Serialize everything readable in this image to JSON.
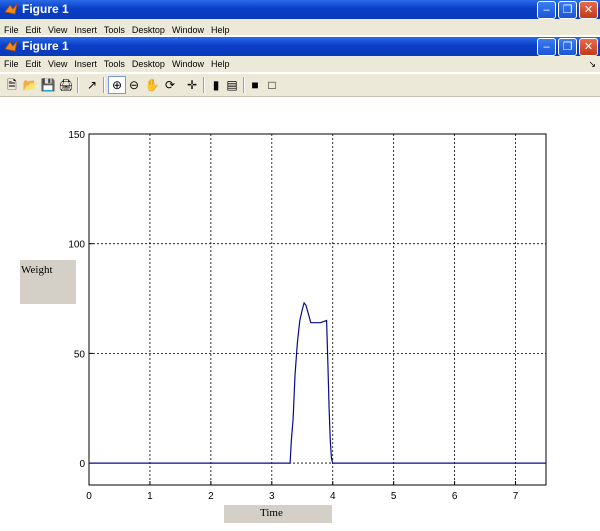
{
  "back_window": {
    "title": "Figure 1",
    "menu": [
      "File",
      "Edit",
      "View",
      "Insert",
      "Tools",
      "Desktop",
      "Window",
      "Help"
    ]
  },
  "window": {
    "title": "Figure 1",
    "menu": [
      "File",
      "Edit",
      "View",
      "Insert",
      "Tools",
      "Desktop",
      "Window",
      "Help"
    ],
    "toolbar": [
      "new-figure",
      "open-file",
      "save",
      "print",
      "edit-plot",
      "zoom-in",
      "zoom-out",
      "pan",
      "rotate-3d",
      "data-cursor",
      "colorbar",
      "legend",
      "hide-plot-tools",
      "show-plot-tools"
    ]
  },
  "labels": {
    "ylabel": "Weight",
    "xlabel": "Time"
  },
  "chart_data": {
    "type": "line",
    "xlabel": "Time",
    "ylabel": "Weight",
    "xlim": [
      0,
      7.5
    ],
    "ylim": [
      -10,
      150
    ],
    "xticks": [
      0,
      1,
      2,
      3,
      4,
      5,
      6,
      7
    ],
    "yticks": [
      0,
      50,
      100,
      150
    ],
    "grid": true,
    "series": [
      {
        "color": "#0a0a8a",
        "x": [
          0,
          0.5,
          1,
          1.5,
          2,
          2.5,
          3,
          3.2,
          3.3,
          3.32,
          3.35,
          3.38,
          3.42,
          3.46,
          3.5,
          3.53,
          3.56,
          3.6,
          3.64,
          3.7,
          3.8,
          3.9,
          3.92,
          3.94,
          3.96,
          3.98,
          4.0,
          4.02,
          4.1,
          4.5,
          5,
          5.5,
          6,
          6.5,
          7,
          7.5
        ],
        "y": [
          0,
          0,
          0,
          0,
          0,
          0,
          0,
          0,
          0,
          10,
          20,
          40,
          55,
          65,
          70,
          73,
          72,
          68,
          64,
          64,
          64,
          65,
          45,
          25,
          10,
          2,
          0,
          0,
          0,
          0,
          0,
          0,
          0,
          0,
          0,
          0
        ]
      }
    ]
  }
}
